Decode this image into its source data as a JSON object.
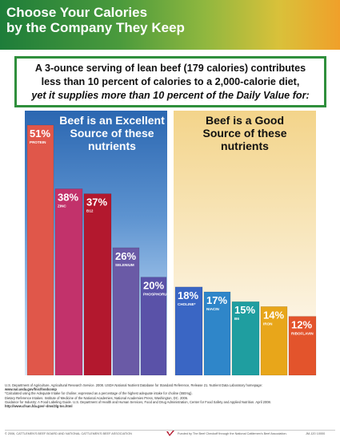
{
  "header": {
    "title_line1": "Choose Your Calories",
    "title_line2": "by the Company They Keep"
  },
  "callout": {
    "line1": "A 3-ounce serving of lean beef (179 calories) contributes",
    "line2": "less than 10 percent of calories to a 2,000-calorie diet,",
    "line3": "yet it supplies more than 10 percent of the Daily Value for:"
  },
  "panels": {
    "excellent_line1": "Beef is an Excellent",
    "excellent_line2": "Source of these",
    "excellent_line3": "nutrients",
    "good_line1": "Beef is a Good",
    "good_line2": "Source of these",
    "good_line3": "nutrients"
  },
  "chart_data": {
    "type": "bar",
    "title": "",
    "xlabel": "",
    "ylabel": "",
    "ylim": [
      0,
      51
    ],
    "categories": [
      "PROTEIN",
      "ZINC",
      "B12",
      "SELENIUM",
      "PHOSPHORUS",
      "CHOLINE*",
      "NIACIN",
      "B6",
      "IRON",
      "RIBOFLAVIN"
    ],
    "value_labels": [
      "51%",
      "38%",
      "37%",
      "26%",
      "20%",
      "18%",
      "17%",
      "15%",
      "14%",
      "12%"
    ],
    "values": [
      51,
      38,
      37,
      26,
      20,
      18,
      17,
      15,
      14,
      12
    ],
    "groups": [
      "excellent",
      "excellent",
      "excellent",
      "excellent",
      "excellent",
      "good",
      "good",
      "good",
      "good",
      "good"
    ],
    "colors": [
      "#e0574a",
      "#c2326b",
      "#b3182e",
      "#6a5aa6",
      "#5a52a8",
      "#3a66c4",
      "#2f86c9",
      "#1f9ea0",
      "#e8a61a",
      "#e3542c"
    ]
  },
  "footnotes": {
    "l1": "U.S. Department of Agriculture, Agricultural Research Service. 2008. USDA National Nutrient Database for Standard Reference, Release 21. Nutrient Data Laboratory homepage:",
    "l2": "www.nal.usda.gov/fnic/foodcomp",
    "l3": "*Calculated using the Adequate Intake for choline; expressed as a percentage of the highest adequate intake for choline (550mg).",
    "l4": "Dietary Reference Intakes. Institute of Medicine of the National Academies, National Academies Press, Washington, DC. 2006.",
    "l5": "Guidance for Industry: A Food Labeling Guide. U.S. Department of Health and Human Services, Food and Drug Administration, Center for Food Safety and Applied Nutrition. April 2008.",
    "l6": "http://www.cfsan.fda.gov/~dms/2lg-toc.html"
  },
  "footer": {
    "left": "© 2006, CATTLEMEN'S BEEF BOARD AND NATIONAL CATTLEMEN'S BEEF ASSOCIATION",
    "mid": "Funded by The Beef Checkoff through the National Cattlemen's Beef Association.",
    "right": "JM-120   10000"
  }
}
